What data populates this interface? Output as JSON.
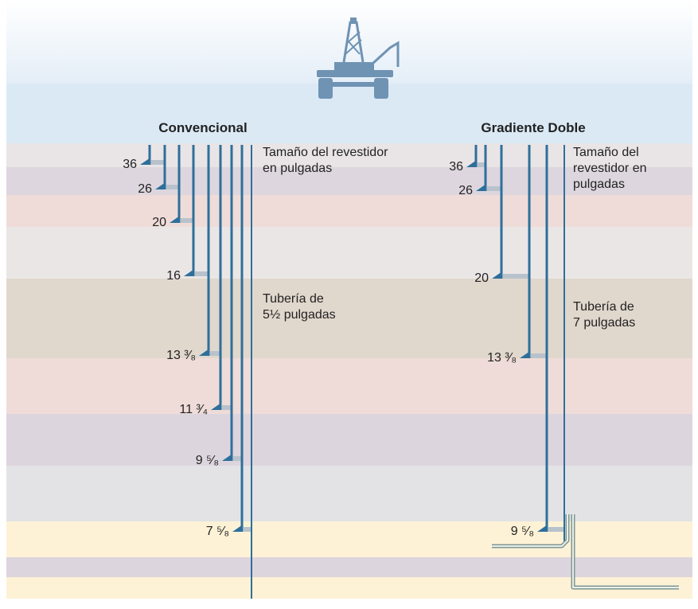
{
  "panels": [
    {
      "title": "Convencional",
      "notes": [
        [
          "Tamaño del revestidor",
          "en pulgadas"
        ],
        [
          "Tubería de",
          "5½ pulgadas"
        ]
      ],
      "casings": [
        "36",
        "26",
        "20",
        "16",
        "13 ³⁄₈",
        "11 ³⁄₄",
        "9 ⁵⁄₈",
        "7 ⁵⁄₈"
      ]
    },
    {
      "title": "Gradiente Doble",
      "notes": [
        [
          "Tamaño del",
          "revestidor en",
          "pulgadas"
        ],
        [
          "Tubería de",
          "7 pulgadas"
        ]
      ],
      "casings": [
        "36",
        "26",
        "20",
        "13 ³⁄₈",
        "9 ⁵⁄₈"
      ]
    }
  ]
}
